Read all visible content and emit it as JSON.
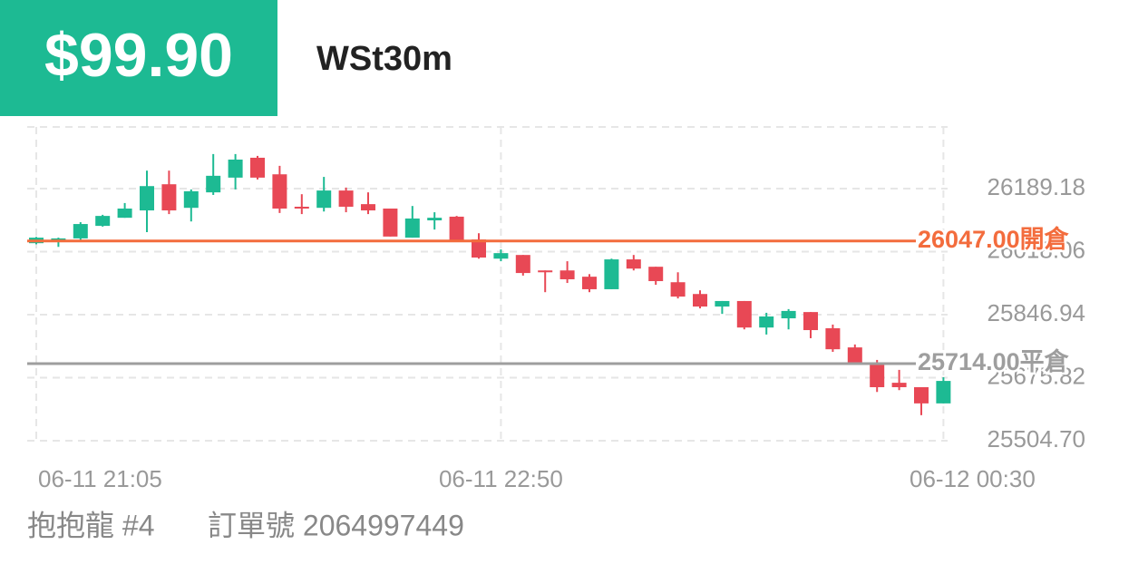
{
  "header": {
    "price": "$99.90",
    "symbol": "WSt30m"
  },
  "chart_data": {
    "type": "candlestick",
    "categories": [
      "06-11 21:05",
      null,
      null,
      null,
      null,
      null,
      null,
      null,
      null,
      null,
      null,
      null,
      null,
      null,
      null,
      null,
      null,
      null,
      null,
      null,
      null,
      "06-11 22:50",
      null,
      null,
      null,
      null,
      null,
      null,
      null,
      null,
      null,
      null,
      null,
      null,
      null,
      null,
      null,
      null,
      null,
      null,
      null,
      "06-12 00:30"
    ],
    "open": [
      26041,
      26051,
      26054,
      26088,
      26110,
      26130,
      26201,
      26137,
      26179,
      26219,
      26273,
      26228,
      26140,
      26137,
      26184,
      26147,
      26135,
      26056,
      26103,
      26113,
      26051,
      25999,
      26009,
      25967,
      25967,
      25950,
      25916,
      25997,
      25977,
      25935,
      25903,
      25869,
      25884,
      25812,
      25837,
      25854,
      25810,
      25758,
      25716,
      25662,
      25650,
      25606
    ],
    "high": [
      26058,
      26056,
      26098,
      26118,
      26150,
      26238,
      26238,
      26187,
      26283,
      26283,
      26278,
      26251,
      26174,
      26221,
      26192,
      26179,
      26135,
      26142,
      26125,
      26115,
      26068,
      26024,
      26009,
      25967,
      25992,
      25957,
      25999,
      26009,
      25977,
      25962,
      25913,
      25884,
      25884,
      25852,
      25862,
      25854,
      25820,
      25766,
      25724,
      25697,
      25650,
      25677
    ],
    "low": [
      26038,
      26031,
      26046,
      26086,
      26110,
      26071,
      26120,
      26100,
      26172,
      26187,
      26214,
      26123,
      26120,
      26127,
      26125,
      26120,
      26059,
      26056,
      26078,
      26049,
      25999,
      25992,
      25953,
      25908,
      25933,
      25908,
      25916,
      25967,
      25928,
      25891,
      25864,
      25849,
      25807,
      25793,
      25807,
      25783,
      25746,
      25711,
      25637,
      25642,
      25574,
      25606
    ],
    "close": [
      26056,
      26054,
      26093,
      26115,
      26135,
      26196,
      26130,
      26182,
      26224,
      26268,
      26219,
      26135,
      26135,
      26184,
      26140,
      26130,
      26059,
      26108,
      26110,
      26049,
      26002,
      26014,
      25960,
      25962,
      25943,
      25916,
      25997,
      25972,
      25938,
      25896,
      25869,
      25884,
      25812,
      25842,
      25857,
      25805,
      25753,
      25716,
      25650,
      25650,
      25606,
      25667
    ],
    "up_color": "#1dba93",
    "down_color": "#e84855",
    "ylim": [
      25504.7,
      26356.6
    ],
    "yticks": [
      {
        "value": 25504.7,
        "label": "25504.70"
      },
      25675.82,
      25846.94,
      26018.06,
      26189.18
    ],
    "grid": true,
    "reference_lines": [
      {
        "value": 26047,
        "label": "26047.00開倉",
        "color": "#f36c3d"
      },
      {
        "value": 25714,
        "label": "25714.00平倉",
        "color": "#9e9e9e"
      }
    ]
  },
  "footer": {
    "name": "抱抱龍 #4",
    "order": "訂單號 2064997449"
  }
}
